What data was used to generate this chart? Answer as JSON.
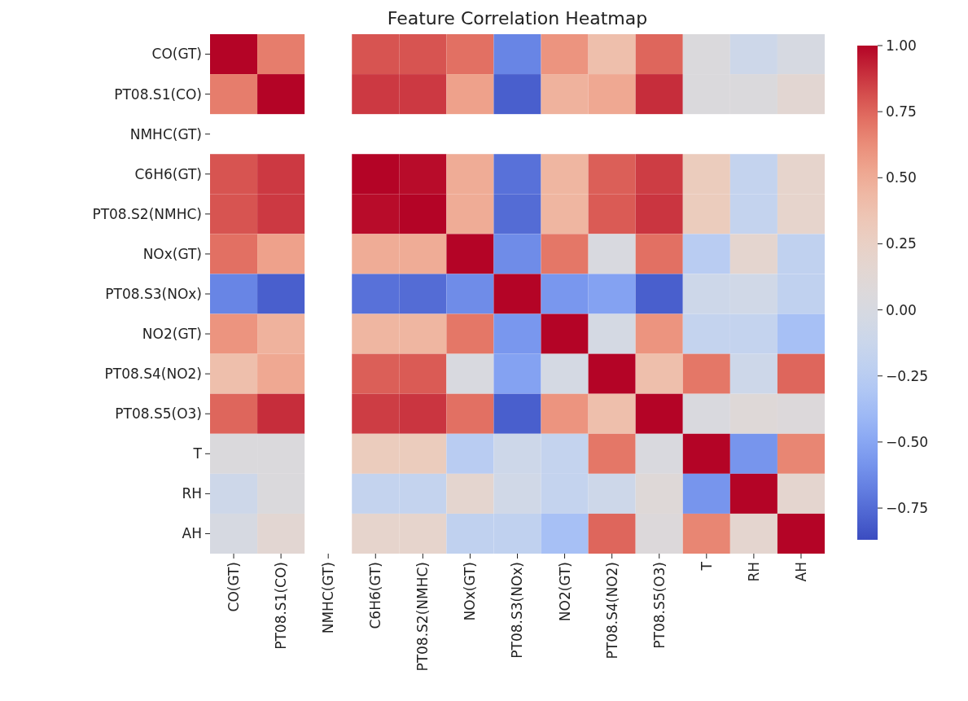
{
  "chart_data": {
    "type": "heatmap",
    "title": "Feature Correlation Heatmap",
    "categories": [
      "CO(GT)",
      "PT08.S1(CO)",
      "NMHC(GT)",
      "C6H6(GT)",
      "PT08.S2(NMHC)",
      "NOx(GT)",
      "PT08.S3(NOx)",
      "NO2(GT)",
      "PT08.S4(NO2)",
      "PT08.S5(O3)",
      "T",
      "RH",
      "AH"
    ],
    "y_categories": [
      "CO(GT)",
      "PT08.S1(CO)",
      "NMHC(GT)",
      "C6H6(GT)",
      "PT08.S2(NMHC)",
      "NOx(GT)",
      "PT08.S3(NOx)",
      "NO2(GT)",
      "PT08.S4(NO2)",
      "PT08.S5(O3)",
      "T",
      "RH",
      "AH"
    ],
    "cells": [
      [
        1,
        0.68,
        null,
        0.8,
        0.8,
        0.72,
        -0.65,
        0.6,
        0.4,
        0.75,
        0.05,
        -0.1,
        0.0
      ],
      [
        0.68,
        1,
        null,
        0.87,
        0.87,
        0.55,
        -0.8,
        0.47,
        0.52,
        0.9,
        0.05,
        0.05,
        0.15
      ],
      [
        null,
        null,
        null,
        null,
        null,
        null,
        null,
        null,
        null,
        null,
        null,
        null,
        null
      ],
      [
        0.8,
        0.87,
        null,
        1,
        0.98,
        0.5,
        -0.73,
        0.45,
        0.77,
        0.86,
        0.3,
        -0.17,
        0.2
      ],
      [
        0.8,
        0.87,
        null,
        0.98,
        1,
        0.5,
        -0.75,
        0.45,
        0.78,
        0.88,
        0.3,
        -0.17,
        0.2
      ],
      [
        0.72,
        0.55,
        null,
        0.5,
        0.5,
        1,
        -0.62,
        0.7,
        0.02,
        0.72,
        -0.25,
        0.17,
        -0.2
      ],
      [
        -0.65,
        -0.8,
        null,
        -0.73,
        -0.75,
        -0.62,
        1,
        -0.57,
        -0.52,
        -0.8,
        -0.1,
        -0.07,
        -0.2
      ],
      [
        0.6,
        0.47,
        null,
        0.45,
        0.45,
        0.7,
        -0.57,
        1,
        -0.02,
        0.6,
        -0.17,
        -0.17,
        -0.35
      ],
      [
        0.4,
        0.52,
        null,
        0.77,
        0.78,
        0.02,
        -0.52,
        -0.02,
        1,
        0.4,
        0.7,
        -0.1,
        0.75
      ],
      [
        0.75,
        0.9,
        null,
        0.86,
        0.88,
        0.72,
        -0.8,
        0.6,
        0.4,
        1,
        0.03,
        0.1,
        0.07
      ],
      [
        0.05,
        0.05,
        null,
        0.3,
        0.3,
        -0.25,
        -0.1,
        -0.17,
        0.7,
        0.03,
        1,
        -0.58,
        0.65
      ],
      [
        -0.1,
        0.05,
        null,
        -0.17,
        -0.17,
        0.17,
        -0.07,
        -0.17,
        -0.1,
        0.1,
        -0.58,
        1,
        0.17
      ],
      [
        0.0,
        0.15,
        null,
        0.2,
        0.2,
        -0.2,
        -0.2,
        -0.35,
        0.75,
        0.07,
        0.65,
        0.17,
        1
      ]
    ],
    "clim": [
      -0.87,
      1
    ],
    "cticks": [
      {
        "value": 1,
        "label": "1.00"
      },
      {
        "value": 0.75,
        "label": "0.75"
      },
      {
        "value": 0.5,
        "label": "0.50"
      },
      {
        "value": 0.25,
        "label": "0.25"
      },
      {
        "value": 0,
        "label": "0.00"
      },
      {
        "value": -0.25,
        "label": "−0.25"
      },
      {
        "value": -0.5,
        "label": "−0.50"
      },
      {
        "value": -0.75,
        "label": "−0.75"
      }
    ]
  }
}
